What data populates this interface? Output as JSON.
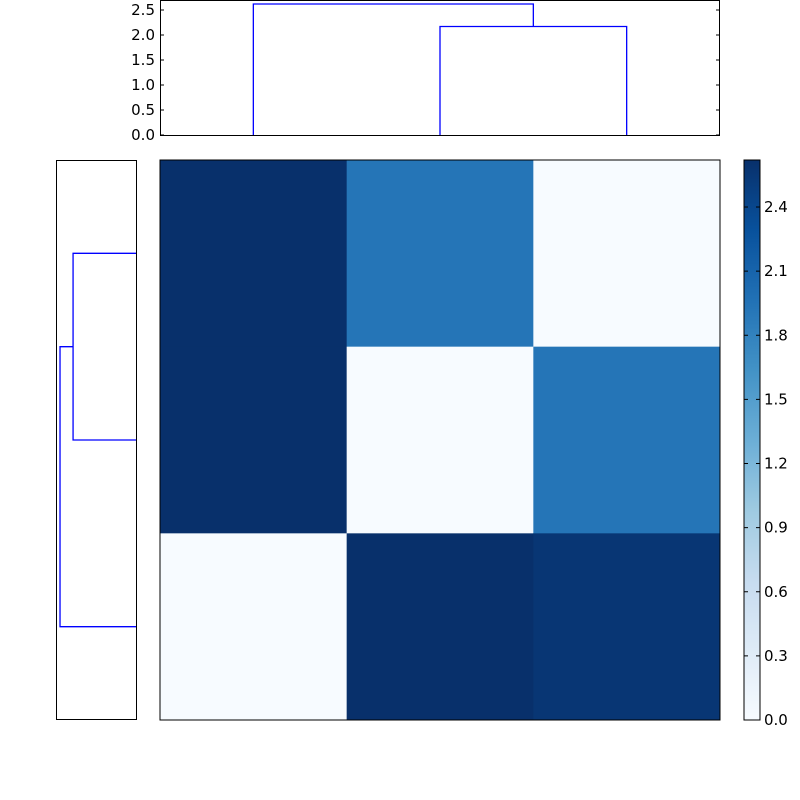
{
  "chart_data": {
    "type": "heatmap",
    "colormap": "Blues",
    "matrix": [
      [
        2.62,
        1.93,
        0.0
      ],
      [
        2.62,
        0.0,
        1.93
      ],
      [
        0.0,
        2.62,
        2.56
      ]
    ],
    "colorbar": {
      "range": [
        0.0,
        2.62
      ],
      "tick_labels": [
        "0.0",
        "0.3",
        "0.6",
        "0.9",
        "1.2",
        "1.5",
        "1.8",
        "2.1",
        "2.4"
      ],
      "tick_values": [
        0.0,
        0.3,
        0.6,
        0.9,
        1.2,
        1.5,
        1.8,
        2.1,
        2.4
      ]
    },
    "top_dendrogram": {
      "ylim": [
        0.0,
        2.7
      ],
      "tick_labels": [
        "0.0",
        "0.5",
        "1.0",
        "1.5",
        "2.0",
        "2.5"
      ],
      "tick_values": [
        0.0,
        0.5,
        1.0,
        1.5,
        2.0,
        2.5
      ],
      "links": [
        {
          "leaves": [
            1,
            2
          ],
          "height": 2.17
        },
        {
          "leaves": [
            0,
            "1-2"
          ],
          "height": 2.62
        }
      ],
      "line_color": "#0000ff"
    },
    "left_dendrogram": {
      "links": [
        {
          "leaves": [
            0,
            1
          ],
          "height": 2.17
        },
        {
          "leaves": [
            "0-1",
            2
          ],
          "height": 2.62
        }
      ],
      "line_color": "#0000ff"
    },
    "grid": false
  }
}
